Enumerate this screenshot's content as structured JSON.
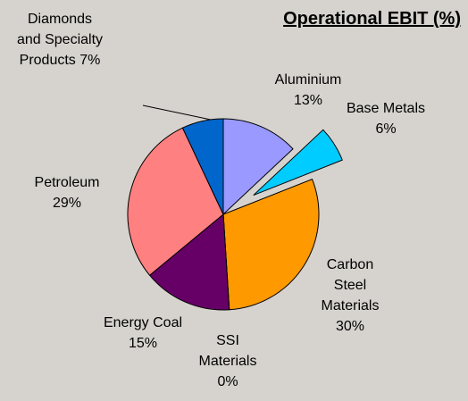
{
  "chart_data": {
    "type": "pie",
    "title": "Operational EBIT (%)",
    "categories": [
      "Aluminium",
      "Base Metals",
      "Carbon Steel Materials",
      "SSI Materials",
      "Energy Coal",
      "Petroleum",
      "Diamonds and Specialty Products"
    ],
    "values": [
      13,
      6,
      30,
      0,
      15,
      29,
      7
    ],
    "value_labels": [
      "13%",
      "6%",
      "30%",
      "0%",
      "15%",
      "29%",
      "7%"
    ],
    "colors": [
      "#9999ff",
      "#00ccff",
      "#ff9900",
      "#993366",
      "#660066",
      "#ff8080",
      "#0066cc"
    ],
    "exploded": [
      false,
      true,
      false,
      false,
      false,
      false,
      false
    ]
  }
}
